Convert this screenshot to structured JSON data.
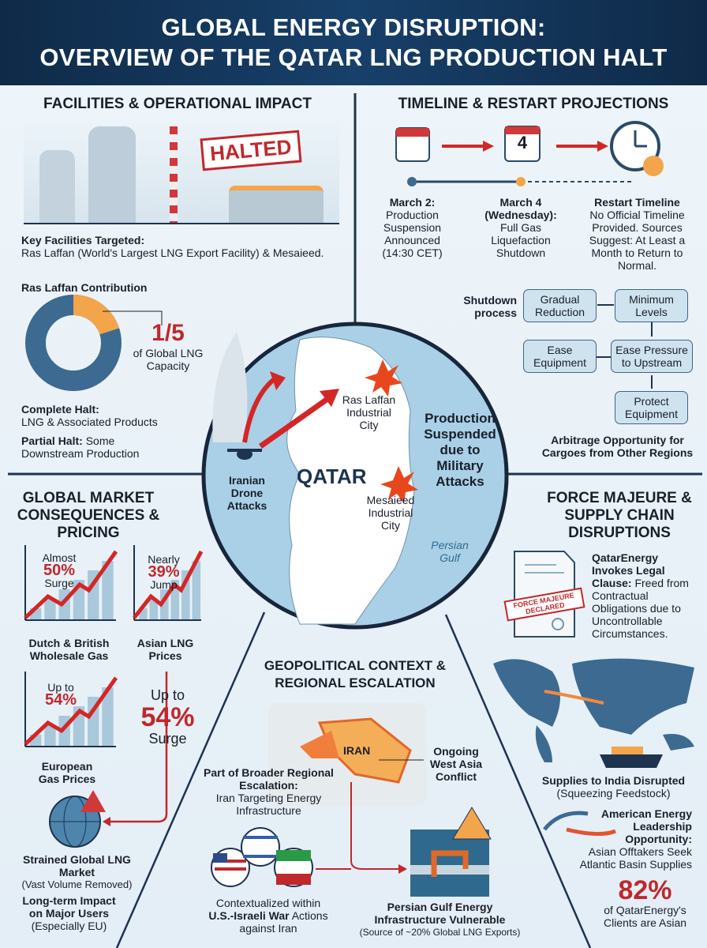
{
  "title": {
    "line1": "GLOBAL ENERGY DISRUPTION:",
    "line2": "OVERVIEW OF THE QATAR LNG PRODUCTION HALT"
  },
  "facilities": {
    "heading": "FACILITIES & OPERATIONAL IMPACT",
    "stamp": "HALTED",
    "key_label": "Key Facilities Targeted:",
    "key_text": "Ras Laffan (World's Largest LNG Export Facility) & Mesaieed.",
    "contrib_label": "Ras Laffan Contribution",
    "share_value": "1/5",
    "share_fraction": 0.2,
    "share_text": "of Global LNG Capacity",
    "complete_label": "Complete Halt:",
    "complete_text": "LNG & Associated Products",
    "partial_label": "Partial Halt:",
    "partial_text": "Some Downstream Production",
    "colors": {
      "donut_main": "#3c6a91",
      "donut_share": "#f2a54a"
    }
  },
  "timeline": {
    "heading": "TIMELINE & RESTART PROJECTIONS",
    "calendar_day": "4",
    "events": [
      {
        "label": "March 2:",
        "text": "Production Suspension Announced (14:30 CET)"
      },
      {
        "label": "March 4 (Wednesday):",
        "text": "Full Gas Liquefaction Shutdown"
      },
      {
        "label": "Restart Timeline",
        "text": "No Official Timeline Provided. Sources Suggest: At Least a Month to Return to Normal."
      }
    ],
    "process_label": "Shutdown process",
    "steps": [
      "Gradual Reduction",
      "Minimum Levels",
      "Ease Pressure to Upstream",
      "Ease Equipment",
      "Protect Equipment"
    ],
    "arbitrage": "Arbitrage Opportunity for Cargoes from Other Regions"
  },
  "map": {
    "country": "QATAR",
    "site1": "Ras Laffan Industrial City",
    "site2": "Mesaieed Industrial City",
    "sea": "Persian Gulf",
    "attack": "Iranian Drone Attacks",
    "status": "Production Suspended due to Military Attacks"
  },
  "market": {
    "heading": "GLOBAL MARKET CONSEQUENCES & PRICING",
    "charts": [
      {
        "pre": "Almost",
        "value": "50%",
        "post": "Surge",
        "label": "Dutch & British Wholesale Gas"
      },
      {
        "pre": "Nearly",
        "value": "39%",
        "post": "Jump",
        "label": "Asian LNG Prices"
      },
      {
        "pre": "Up to",
        "value": "54%",
        "post": "",
        "label": "European Gas Prices"
      }
    ],
    "big": {
      "pre": "Up to",
      "value": "54%",
      "post": "Surge"
    },
    "strained_label": "Strained Global LNG Market",
    "strained_text": "(Vast Volume Removed)",
    "longterm_label": "Long-term Impact on Major Users",
    "longterm_text": "(Especially EU)"
  },
  "geo": {
    "heading": "GEOPOLITICAL CONTEXT & REGIONAL ESCALATION",
    "iran": "IRAN",
    "conflict": "Ongoing West Asia Conflict",
    "broader_label": "Part of Broader Regional Escalation:",
    "broader_text": "Iran Targeting Energy Infrastructure",
    "context_text1": "Contextualized within",
    "context_bold": "U.S.-Israeli War",
    "context_text2": "Actions against Iran",
    "gulf_label": "Persian Gulf Energy Infrastructure Vulnerable",
    "gulf_text": "(Source of ~20% Global LNG Exports)"
  },
  "force": {
    "heading": "FORCE MAJEURE & SUPPLY CHAIN DISRUPTIONS",
    "stamp": "FORCE MAJEURE DECLARED",
    "legal_label": "QatarEnergy Invokes Legal Clause:",
    "legal_text": "Freed from Contractual Obligations due to Uncontrollable Circumstances.",
    "india_label": "Supplies to India Disrupted",
    "india_text": "(Squeezing Feedstock)",
    "us_label": "American Energy Leadership Opportunity:",
    "us_text": "Asian Offtakers Seek Atlantic Basin Supplies",
    "pct": "82%",
    "pct_text": "of QatarEnergy's Clients are Asian"
  }
}
